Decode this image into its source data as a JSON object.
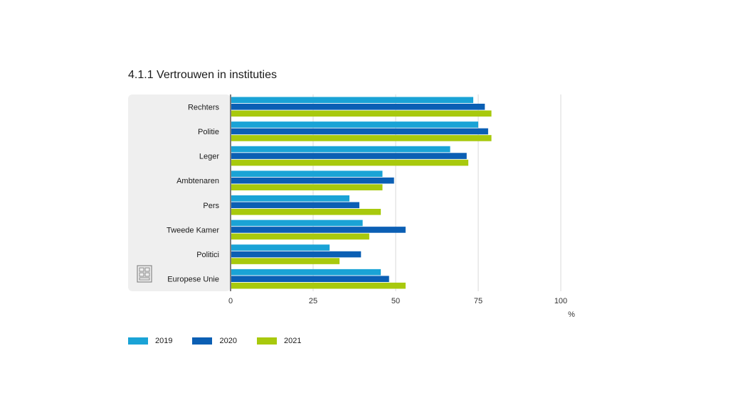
{
  "chart_data": {
    "type": "bar",
    "orientation": "horizontal",
    "title": "4.1.1 Vertrouwen in instituties",
    "categories": [
      "Rechters",
      "Politie",
      "Leger",
      "Ambtenaren",
      "Pers",
      "Tweede Kamer",
      "Politici",
      "Europese Unie"
    ],
    "series": [
      {
        "name": "2019",
        "color": "#1aa3d6",
        "values": [
          73.5,
          75,
          66.5,
          46,
          36,
          40,
          30,
          45.5
        ]
      },
      {
        "name": "2020",
        "color": "#0b5fb4",
        "values": [
          77,
          78,
          71.5,
          49.5,
          39,
          53,
          39.5,
          48
        ]
      },
      {
        "name": "2021",
        "color": "#a8c90d",
        "values": [
          79,
          79,
          72,
          46,
          45.5,
          42,
          33,
          53
        ]
      }
    ],
    "xlim": [
      0,
      100
    ],
    "xticks": [
      "0",
      "25",
      "50",
      "75",
      "100"
    ],
    "unit_label": "%",
    "grid": true,
    "legend_position": "bottom-left"
  }
}
